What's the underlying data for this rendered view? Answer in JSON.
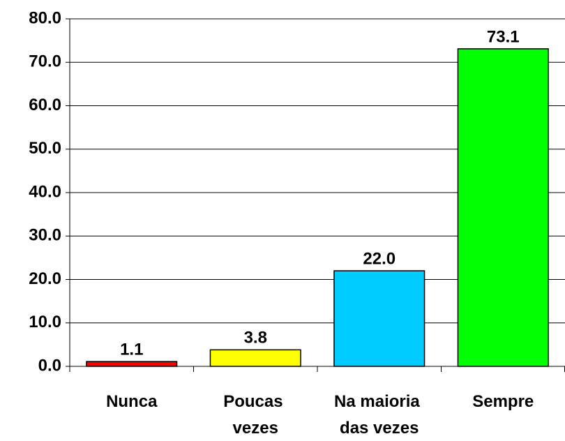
{
  "chart_data": {
    "type": "bar",
    "categories": [
      "Nunca",
      "Poucas vezes",
      "Na maioria das vezes",
      "Sempre"
    ],
    "values": [
      1.1,
      3.8,
      22.0,
      73.1
    ],
    "value_labels": [
      "1.1",
      "3.8",
      "22.0",
      "73.1"
    ],
    "colors": [
      "#ff0000",
      "#ffff00",
      "#00ccff",
      "#00ff00"
    ],
    "ylim": [
      0,
      80
    ],
    "yticks": [
      {
        "value": 0,
        "label": "0.0"
      },
      {
        "value": 10,
        "label": "10.0"
      },
      {
        "value": 20,
        "label": "20.0"
      },
      {
        "value": 30,
        "label": "30.0"
      },
      {
        "value": 40,
        "label": "40.0"
      },
      {
        "value": 50,
        "label": "50.0"
      },
      {
        "value": 60,
        "label": "60.0"
      },
      {
        "value": 70,
        "label": "70.0"
      },
      {
        "value": 80,
        "label": "80.0"
      }
    ],
    "grid": true
  }
}
